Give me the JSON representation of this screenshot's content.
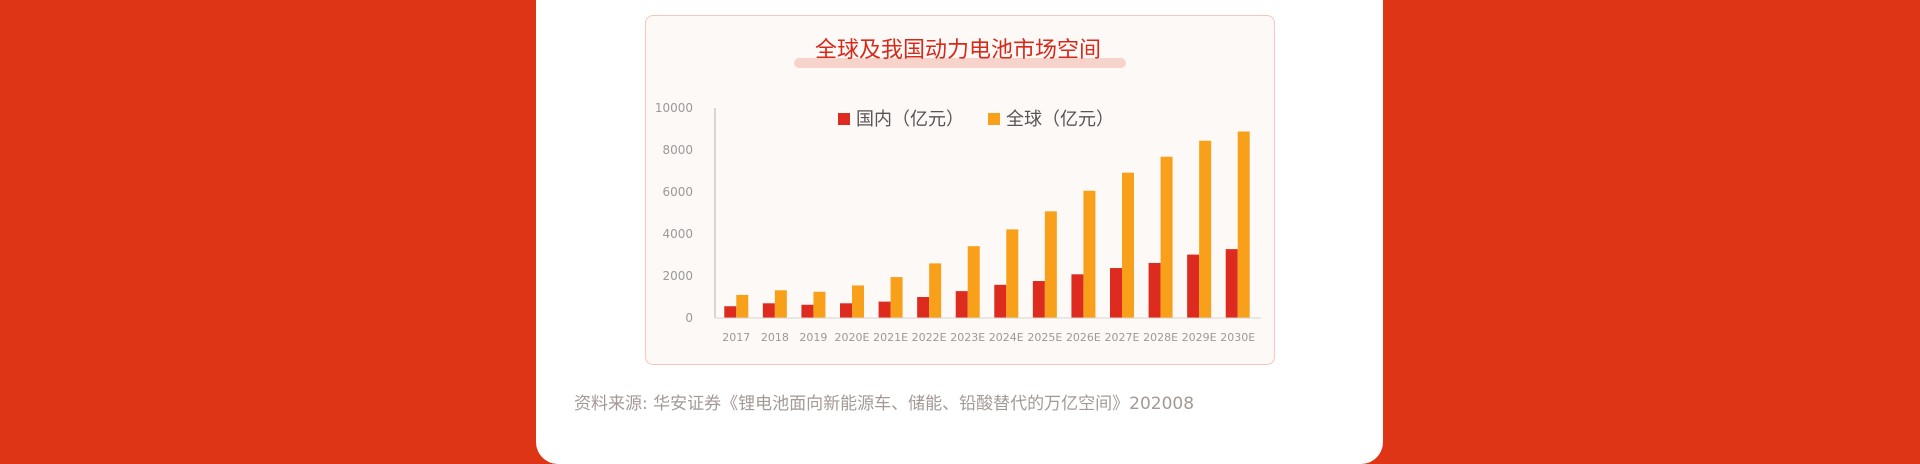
{
  "colors": {
    "background": "#de3516",
    "card": "#ffffff",
    "panel": "#fdf9f6",
    "title": "#d8291a",
    "domestic": "#dd2b1f",
    "global": "#f9a01b",
    "axis_text": "#9a9a9a"
  },
  "chart_data": {
    "type": "bar",
    "title": "全球及我国动力电池市场空间",
    "xlabel": "",
    "ylabel": "",
    "ylim": [
      0,
      10000
    ],
    "yticks": [
      "0",
      "2000",
      "4000",
      "6000",
      "8000",
      "10000"
    ],
    "grid": false,
    "legend": "top-center",
    "categories": [
      "2017",
      "2018",
      "2019",
      "2020E",
      "2021E",
      "2022E",
      "2023E",
      "2024E",
      "2025E",
      "2026E",
      "2027E",
      "2028E",
      "2029E",
      "2030E"
    ],
    "series": [
      {
        "name": "国内（亿元）",
        "color": "#dd2b1f",
        "values": [
          560,
          700,
          630,
          700,
          780,
          1000,
          1280,
          1580,
          1760,
          2080,
          2380,
          2620,
          3020,
          3280
        ]
      },
      {
        "name": "全球（亿元）",
        "color": "#f9a01b",
        "values": [
          1100,
          1320,
          1250,
          1550,
          1950,
          2600,
          3420,
          4220,
          5080,
          6060,
          6920,
          7680,
          8440,
          8880
        ]
      }
    ]
  },
  "source_text": "资料来源: 华安证券《锂电池面向新能源车、储能、铅酸替代的万亿空间》202008"
}
